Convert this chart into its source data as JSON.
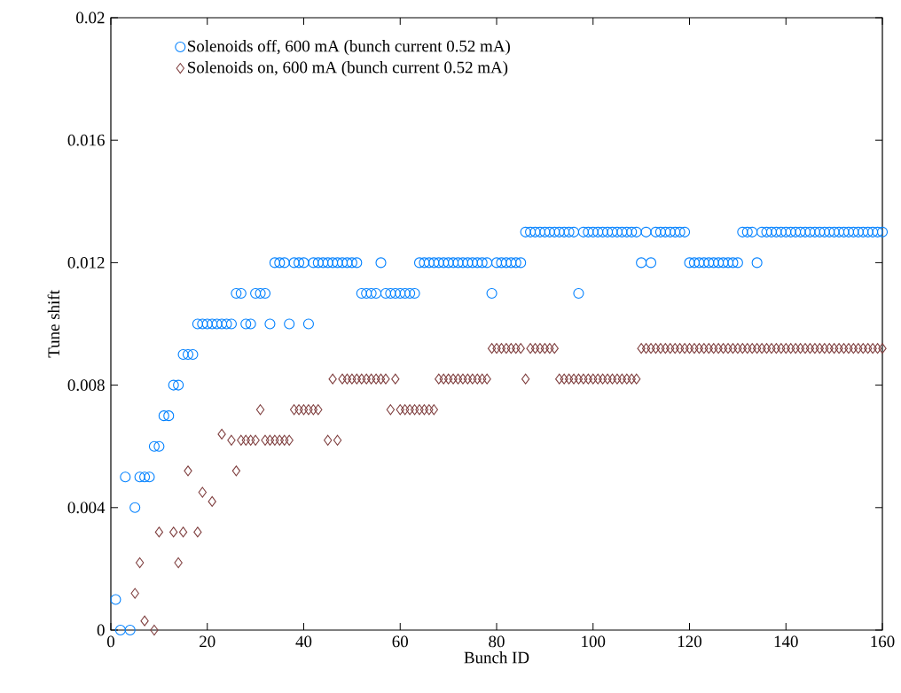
{
  "chart_data": {
    "type": "scatter",
    "xlabel": "Bunch ID",
    "ylabel": "Tune shift",
    "x": [
      1,
      2,
      3,
      4,
      5,
      6,
      7,
      8,
      9,
      10,
      11,
      12,
      13,
      14,
      15,
      16,
      17,
      18,
      19,
      20,
      21,
      22,
      23,
      24,
      25,
      26,
      27,
      28,
      29,
      30,
      31,
      32,
      33,
      34,
      35,
      36,
      37,
      38,
      39,
      40,
      41,
      42,
      43,
      44,
      45,
      46,
      47,
      48,
      49,
      50,
      51,
      52,
      53,
      54,
      55,
      56,
      57,
      58,
      59,
      60,
      61,
      62,
      63,
      64,
      65,
      66,
      67,
      68,
      69,
      70,
      71,
      72,
      73,
      74,
      75,
      76,
      77,
      78,
      79,
      80,
      81,
      82,
      83,
      84,
      85,
      86,
      87,
      88,
      89,
      90,
      91,
      92,
      93,
      94,
      95,
      96,
      97,
      98,
      99,
      100,
      101,
      102,
      103,
      104,
      105,
      106,
      107,
      108,
      109,
      110,
      111,
      112,
      113,
      114,
      115,
      116,
      117,
      118,
      119,
      120,
      121,
      122,
      123,
      124,
      125,
      126,
      127,
      128,
      129,
      130,
      131,
      132,
      133,
      134,
      135,
      136,
      137,
      138,
      139,
      140,
      141,
      142,
      143,
      144,
      145,
      146,
      147,
      148,
      149,
      150,
      151,
      152,
      153,
      154,
      155,
      156,
      157,
      158,
      159,
      160
    ],
    "series": [
      {
        "name": "Solenoids off, 600 mA (bunch current 0.52 mA)",
        "color": "#0080ff",
        "marker": "circle",
        "values": [
          0.001,
          0,
          0.005,
          0,
          0.004,
          0.005,
          0.005,
          0.005,
          0.006,
          0.006,
          0.007,
          0.007,
          0.008,
          0.008,
          0.009,
          0.009,
          0.009,
          0.01,
          0.01,
          0.01,
          0.01,
          0.01,
          0.01,
          0.01,
          0.01,
          0.011,
          0.011,
          0.01,
          0.01,
          0.011,
          0.011,
          0.011,
          0.01,
          0.012,
          0.012,
          0.012,
          0.01,
          0.012,
          0.012,
          0.012,
          0.01,
          0.012,
          0.012,
          0.012,
          0.012,
          0.012,
          0.012,
          0.012,
          0.012,
          0.012,
          0.012,
          0.011,
          0.011,
          0.011,
          0.011,
          0.012,
          0.011,
          0.011,
          0.011,
          0.011,
          0.011,
          0.011,
          0.011,
          0.012,
          0.012,
          0.012,
          0.012,
          0.012,
          0.012,
          0.012,
          0.012,
          0.012,
          0.012,
          0.012,
          0.012,
          0.012,
          0.012,
          0.012,
          0.011,
          0.012,
          0.012,
          0.012,
          0.012,
          0.012,
          0.012,
          0.013,
          0.013,
          0.013,
          0.013,
          0.013,
          0.013,
          0.013,
          0.013,
          0.013,
          0.013,
          0.013,
          0.011,
          0.013,
          0.013,
          0.013,
          0.013,
          0.013,
          0.013,
          0.013,
          0.013,
          0.013,
          0.013,
          0.013,
          0.013,
          0.012,
          0.013,
          0.012,
          0.013,
          0.013,
          0.013,
          0.013,
          0.013,
          0.013,
          0.013,
          0.012,
          0.012,
          0.012,
          0.012,
          0.012,
          0.012,
          0.012,
          0.012,
          0.012,
          0.012,
          0.012,
          0.013,
          0.013,
          0.013,
          0.012,
          0.013,
          0.013,
          0.013,
          0.013,
          0.013,
          0.013,
          0.013,
          0.013,
          0.013,
          0.013,
          0.013,
          0.013,
          0.013,
          0.013,
          0.013,
          0.013,
          0.013,
          0.013,
          0.013,
          0.013,
          0.013,
          0.013,
          0.013,
          0.013,
          0.013,
          0.013
        ]
      },
      {
        "name": "Solenoids on, 600 mA (bunch current 0.52 mA)",
        "color": "#804040",
        "marker": "diamond",
        "values": [
          null,
          null,
          null,
          null,
          0.0012,
          0.0022,
          0.0003,
          null,
          0,
          0.0032,
          null,
          null,
          0.0032,
          0.0022,
          0.0032,
          0.0052,
          null,
          0.0032,
          0.0045,
          null,
          0.0042,
          null,
          0.0064,
          null,
          0.0062,
          0.0052,
          0.0062,
          0.0062,
          0.0062,
          0.0062,
          0.0072,
          0.0062,
          0.0062,
          0.0062,
          0.0062,
          0.0062,
          0.0062,
          0.0072,
          0.0072,
          0.0072,
          0.0072,
          0.0072,
          0.0072,
          null,
          0.0062,
          0.0082,
          0.0062,
          0.0082,
          0.0082,
          0.0082,
          0.0082,
          0.0082,
          0.0082,
          0.0082,
          0.0082,
          0.0082,
          0.0082,
          0.0072,
          0.0082,
          0.0072,
          0.0072,
          0.0072,
          0.0072,
          0.0072,
          0.0072,
          0.0072,
          0.0072,
          0.0082,
          0.0082,
          0.0082,
          0.0082,
          0.0082,
          0.0082,
          0.0082,
          0.0082,
          0.0082,
          0.0082,
          0.0082,
          0.0092,
          0.0092,
          0.0092,
          0.0092,
          0.0092,
          0.0092,
          0.0092,
          0.0082,
          0.0092,
          0.0092,
          0.0092,
          0.0092,
          0.0092,
          0.0092,
          0.0082,
          0.0082,
          0.0082,
          0.0082,
          0.0082,
          0.0082,
          0.0082,
          0.0082,
          0.0082,
          0.0082,
          0.0082,
          0.0082,
          0.0082,
          0.0082,
          0.0082,
          0.0082,
          0.0082,
          0.0092,
          0.0092,
          0.0092,
          0.0092,
          0.0092,
          0.0092,
          0.0092,
          0.0092,
          0.0092,
          0.0092,
          0.0092,
          0.0092,
          0.0092,
          0.0092,
          0.0092,
          0.0092,
          0.0092,
          0.0092,
          0.0092,
          0.0092,
          0.0092,
          0.0092,
          0.0092,
          0.0092,
          0.0092,
          0.0092,
          0.0092,
          0.0092,
          0.0092,
          0.0092,
          0.0092,
          0.0092,
          0.0092,
          0.0092,
          0.0092,
          0.0092,
          0.0092,
          0.0092,
          0.0092,
          0.0092,
          0.0092,
          0.0092,
          0.0092,
          0.0092,
          0.0092,
          0.0092,
          0.0092,
          0.0092,
          0.0092,
          0.0092,
          0.0092
        ]
      }
    ],
    "xlim": [
      0,
      160
    ],
    "xticks": [
      0,
      20,
      40,
      60,
      80,
      100,
      120,
      140,
      160
    ],
    "ylim": [
      0,
      0.02
    ],
    "yticks": [
      0,
      0.004,
      0.008,
      0.012,
      0.016,
      0.02
    ],
    "grid": false,
    "legend": "top left"
  }
}
